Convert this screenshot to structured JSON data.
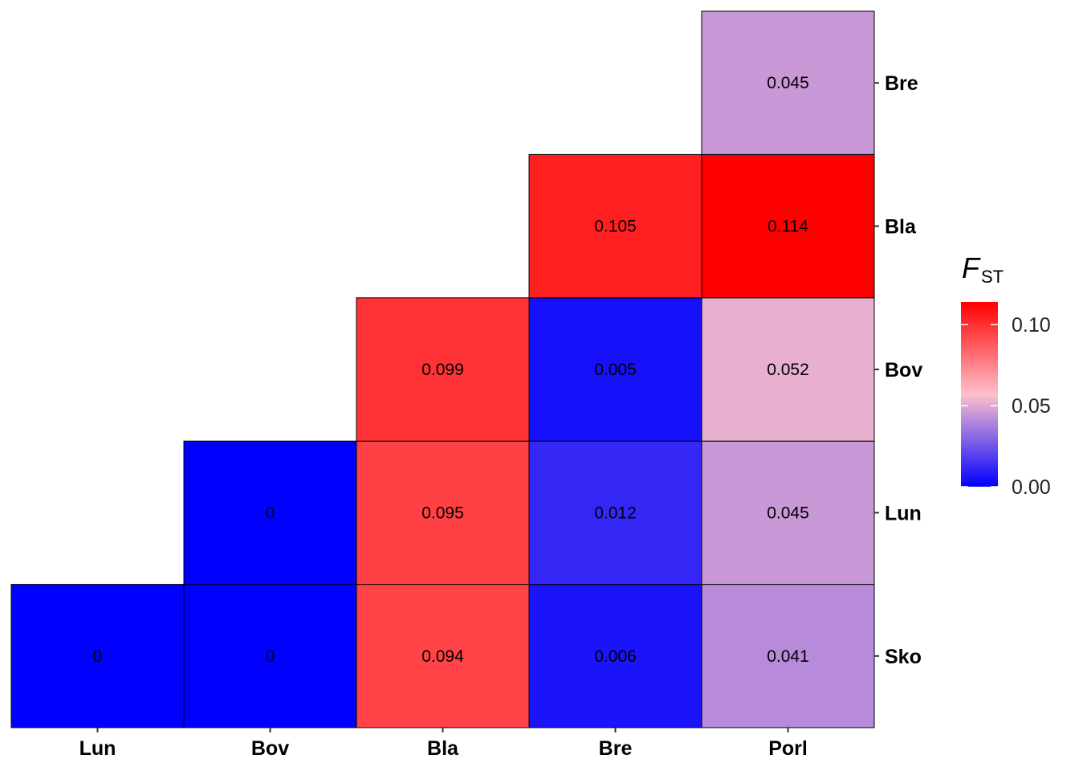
{
  "chart_data": {
    "type": "heatmap",
    "title": "",
    "x_categories": [
      "Lun",
      "Bov",
      "Bla",
      "Bre",
      "Porl"
    ],
    "y_categories": [
      "Sko",
      "Lun",
      "Bov",
      "Bla",
      "Bre"
    ],
    "cells": [
      {
        "x": "Lun",
        "y": "Sko",
        "value": 0,
        "label": "0"
      },
      {
        "x": "Bov",
        "y": "Sko",
        "value": 0,
        "label": "0"
      },
      {
        "x": "Bla",
        "y": "Sko",
        "value": 0.094,
        "label": "0.094"
      },
      {
        "x": "Bre",
        "y": "Sko",
        "value": 0.006,
        "label": "0.006"
      },
      {
        "x": "Porl",
        "y": "Sko",
        "value": 0.041,
        "label": "0.041"
      },
      {
        "x": "Bov",
        "y": "Lun",
        "value": 0,
        "label": "0"
      },
      {
        "x": "Bla",
        "y": "Lun",
        "value": 0.095,
        "label": "0.095"
      },
      {
        "x": "Bre",
        "y": "Lun",
        "value": 0.012,
        "label": "0.012"
      },
      {
        "x": "Porl",
        "y": "Lun",
        "value": 0.045,
        "label": "0.045"
      },
      {
        "x": "Bla",
        "y": "Bov",
        "value": 0.099,
        "label": "0.099"
      },
      {
        "x": "Bre",
        "y": "Bov",
        "value": 0.005,
        "label": "0.005"
      },
      {
        "x": "Porl",
        "y": "Bov",
        "value": 0.052,
        "label": "0.052"
      },
      {
        "x": "Bre",
        "y": "Bla",
        "value": 0.105,
        "label": "0.105"
      },
      {
        "x": "Porl",
        "y": "Bla",
        "value": 0.114,
        "label": "0.114"
      },
      {
        "x": "Porl",
        "y": "Bre",
        "value": 0.045,
        "label": "0.045"
      }
    ],
    "legend": {
      "title": "F",
      "title_subscript": "ST",
      "position": "right",
      "range": [
        0,
        0.114
      ],
      "ticks": [
        {
          "value": 0,
          "label": "0.00"
        },
        {
          "value": 0.05,
          "label": "0.05"
        },
        {
          "value": 0.1,
          "label": "0.10"
        }
      ],
      "colors": {
        "low": "#0000ff",
        "mid": "#ffc0cb",
        "high": "#ff0000"
      },
      "midpoint": 0.057
    },
    "y_axis_position": "right",
    "grid": false
  }
}
